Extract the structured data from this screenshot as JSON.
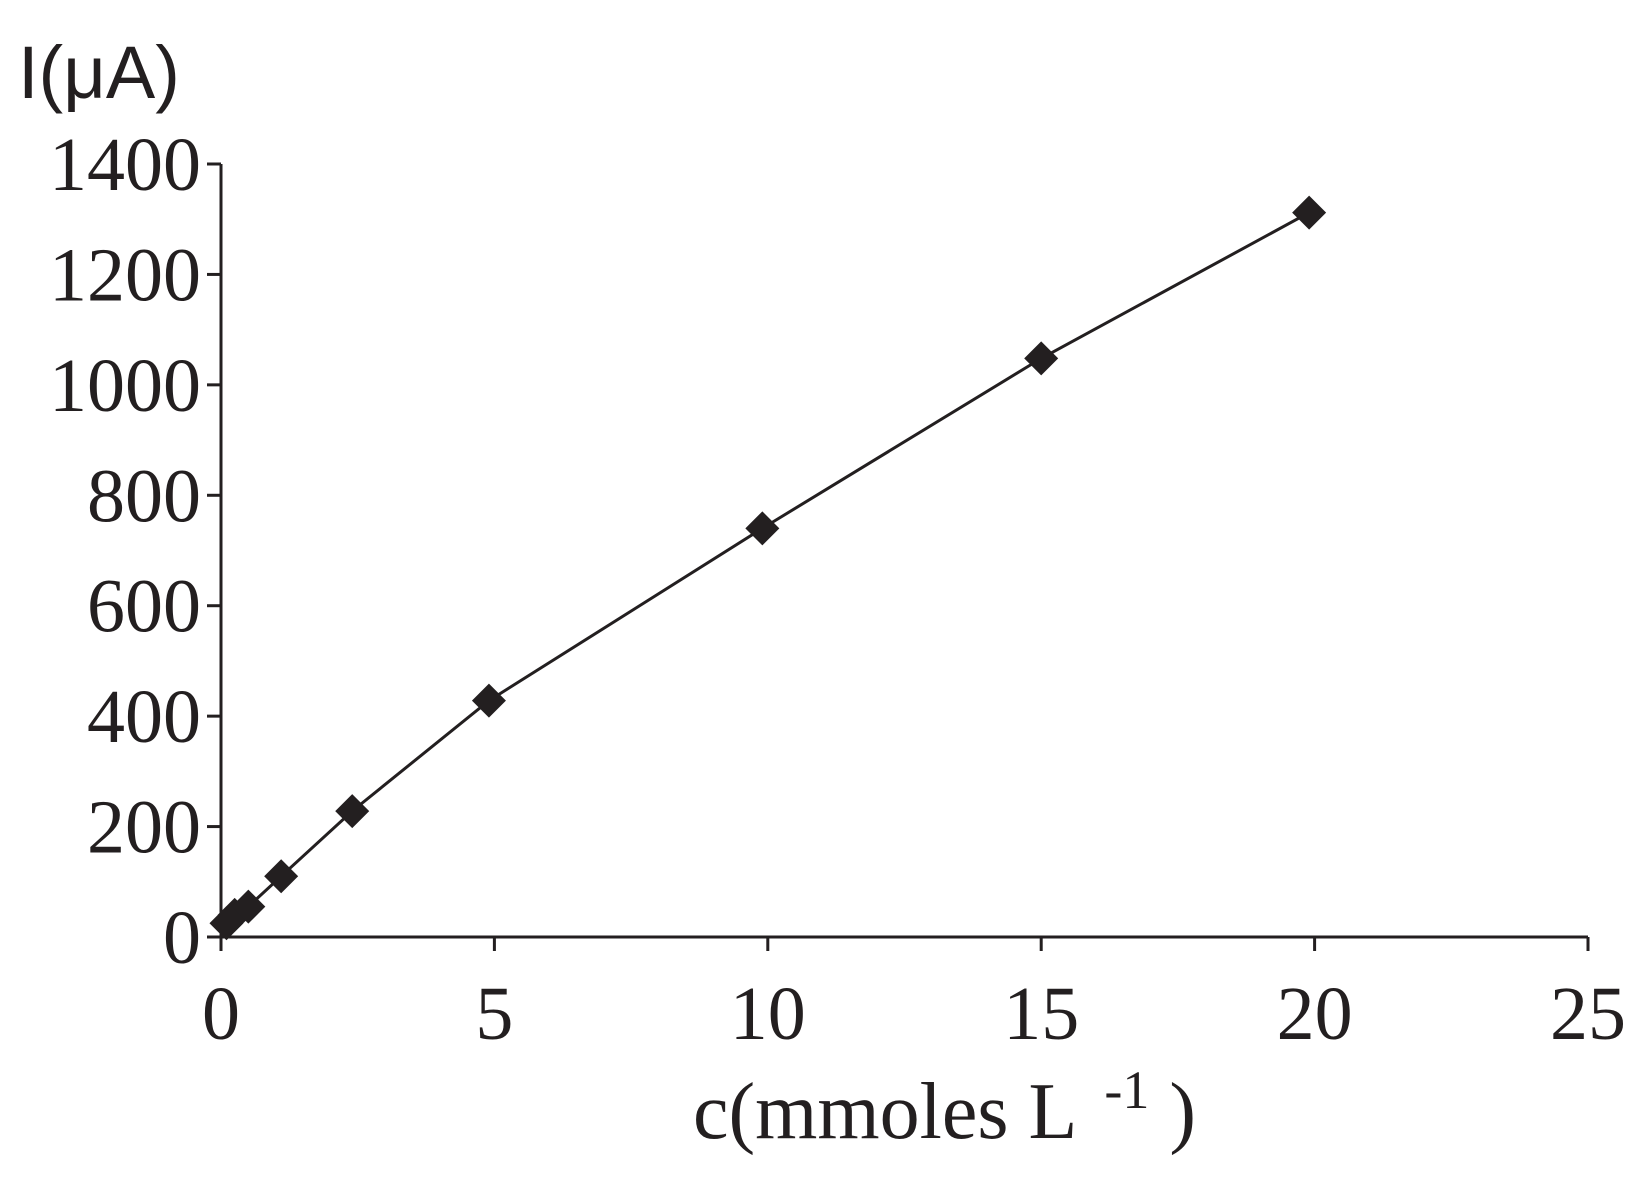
{
  "chart_data": {
    "type": "line",
    "title": "",
    "xlabel": "c(mmoles L",
    "xlabel_sup": "-1",
    "xlabel_close": ")",
    "ylabel": "I(μA)",
    "xlim": [
      0,
      25
    ],
    "ylim": [
      0,
      1400
    ],
    "xticks": [
      0,
      5,
      10,
      15,
      20,
      25
    ],
    "yticks": [
      0,
      200,
      400,
      600,
      800,
      1000,
      1200,
      1400
    ],
    "xtick_labels": [
      "0",
      "5",
      "10",
      "15",
      "20",
      "25"
    ],
    "ytick_labels": [
      "0",
      "200",
      "400",
      "600",
      "800",
      "1000",
      "1200",
      "1400"
    ],
    "grid": false,
    "legend": "none",
    "marker": "diamond",
    "color": "#231f20",
    "series": [
      {
        "x": [
          0.1,
          0.25,
          0.5,
          1.1,
          2.4,
          4.9,
          9.9,
          15.0,
          19.9
        ],
        "y": [
          25,
          40,
          55,
          110,
          228,
          428,
          740,
          1048,
          1312
        ]
      }
    ]
  }
}
